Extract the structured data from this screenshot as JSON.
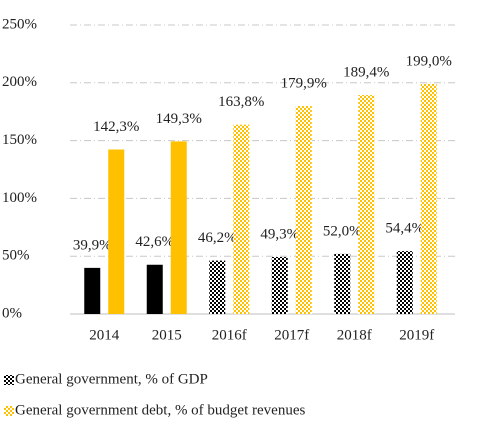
{
  "chart_data": {
    "type": "bar",
    "categories": [
      "2014",
      "2015",
      "2016f",
      "2017f",
      "2018f",
      "2019f"
    ],
    "patterned": [
      false,
      false,
      true,
      true,
      true,
      true
    ],
    "series": [
      {
        "name": "General government, % of GDP",
        "color": "#000000",
        "values": [
          39.9,
          42.6,
          46.2,
          49.3,
          52.0,
          54.4
        ],
        "value_labels": [
          "39,9%",
          "42,6%",
          "46,2%",
          "49,3%",
          "52,0%",
          "54,4%"
        ]
      },
      {
        "name": "General government debt, % of budget revenues",
        "color": "#ffc000",
        "values": [
          142.3,
          149.3,
          163.8,
          179.9,
          189.4,
          199.0
        ],
        "value_labels": [
          "142,3%",
          "149,3%",
          "163,8%",
          "179,9%",
          "189,4%",
          "199,0%"
        ]
      }
    ],
    "ylim": [
      0,
      250
    ],
    "yticks": [
      {
        "value": 0,
        "label": "0%"
      },
      {
        "value": 50,
        "label": "50%"
      },
      {
        "value": 100,
        "label": "100%"
      },
      {
        "value": 150,
        "label": "150%"
      },
      {
        "value": 200,
        "label": "200%"
      },
      {
        "value": 250,
        "label": "250%"
      }
    ],
    "grid": true,
    "legend": "bottom"
  }
}
